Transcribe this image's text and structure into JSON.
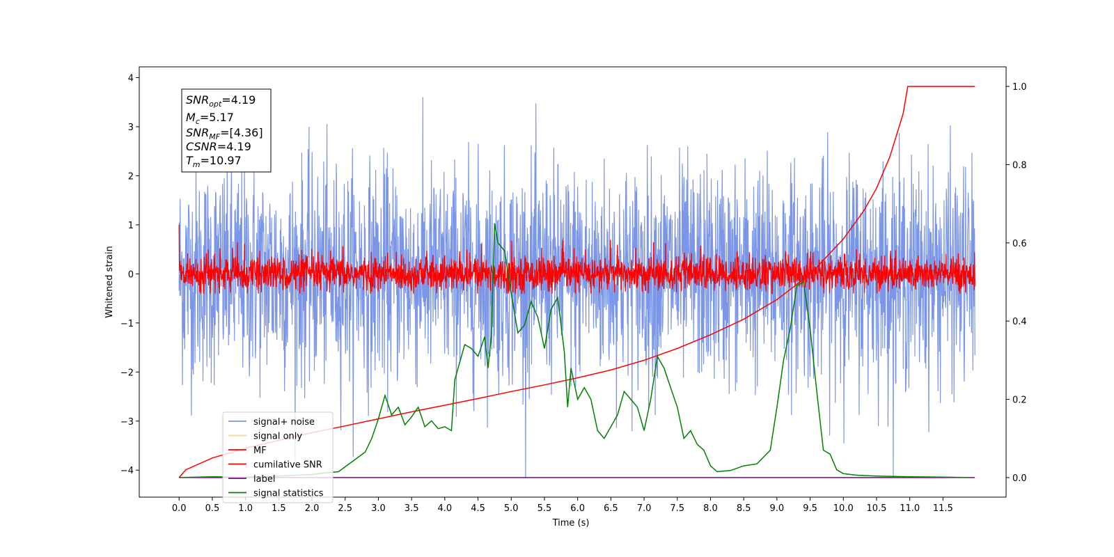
{
  "chart_data": {
    "type": "line",
    "xlabel": "Time (s)",
    "ylabel": "Whitened strain",
    "xlim": [
      -0.6,
      12.45
    ],
    "ylim": [
      -4.55,
      4.22
    ],
    "y2lim": [
      -0.05,
      1.05
    ],
    "x_ticks": [
      "0.0",
      "0.5",
      "1.0",
      "1.5",
      "2.0",
      "2.5",
      "3.0",
      "3.5",
      "4.0",
      "4.5",
      "5.0",
      "5.5",
      "6.0",
      "6.5",
      "7.0",
      "7.5",
      "8.0",
      "8.5",
      "9.0",
      "9.5",
      "10.0",
      "10.5",
      "11.0",
      "11.5"
    ],
    "x_tick_values": [
      0,
      0.5,
      1,
      1.5,
      2,
      2.5,
      3,
      3.5,
      4,
      4.5,
      5,
      5.5,
      6,
      6.5,
      7,
      7.5,
      8,
      8.5,
      9,
      9.5,
      10,
      10.5,
      11,
      11.5
    ],
    "y_tick_values": [
      4,
      3,
      2,
      1,
      0,
      -1,
      -2,
      -3,
      -4
    ],
    "y_ticks": [
      "4",
      "3",
      "2",
      "1",
      "0",
      "−1",
      "−2",
      "−3",
      "−4"
    ],
    "y2_tick_values": [
      1.0,
      0.8,
      0.6,
      0.4,
      0.2,
      0.0
    ],
    "y2_ticks": [
      "1.0",
      "0.8",
      "0.6",
      "0.4",
      "0.2",
      "0.0"
    ],
    "annotation": {
      "snr_opt": {
        "base": "SNR",
        "sub": "opt",
        "value": "=4.19"
      },
      "mc": {
        "base": "M",
        "sub": "c",
        "value": "=5.17"
      },
      "snr_mf": {
        "base": "SNR",
        "sub": "MF",
        "value": "=[4.36]"
      },
      "csnr": {
        "base": "CSNR",
        "sub": "",
        "value": "=4.19"
      },
      "tm": {
        "base": "T",
        "sub": "m",
        "value": "=10.97"
      }
    },
    "legend": {
      "placement": "lower-left",
      "entries": [
        {
          "name": "signal+ noise",
          "color": "#7b96e8"
        },
        {
          "name": "signal only",
          "color": "#ffd27a"
        },
        {
          "name": "MF",
          "color": "#ff0000"
        },
        {
          "name": "cumilative SNR",
          "color": "#ff0000"
        },
        {
          "name": "label",
          "color": "#800080"
        },
        {
          "name": "signal statistics",
          "color": "#008000"
        }
      ]
    },
    "series": [
      {
        "name": "signal+ noise",
        "axis": "left",
        "color": "#7b96e8",
        "x_range": [
          0,
          11.98
        ],
        "amplitude_std": 1.1,
        "y_range": [
          -4.15,
          3.82
        ]
      },
      {
        "name": "signal only",
        "axis": "left",
        "color": "#ffd27a",
        "x_range": [
          0,
          11.98
        ],
        "values": "near zero"
      },
      {
        "name": "MF",
        "axis": "left",
        "color": "#ff0000",
        "x_range": [
          0,
          11.98
        ],
        "amplitude_std": 0.18,
        "y_range": [
          -0.4,
          1.0
        ]
      },
      {
        "name": "cumilative SNR",
        "axis": "right",
        "color": "#ff0000",
        "x": [
          0,
          0.1,
          0.5,
          1,
          1.5,
          2,
          2.5,
          3,
          3.5,
          4,
          4.5,
          5,
          5.5,
          6,
          6.5,
          7,
          7.5,
          8,
          8.5,
          9,
          9.5,
          10,
          10.3,
          10.5,
          10.7,
          10.9,
          10.97,
          11.98
        ],
        "y": [
          0.0,
          0.02,
          0.05,
          0.075,
          0.095,
          0.115,
          0.132,
          0.15,
          0.168,
          0.185,
          0.202,
          0.22,
          0.237,
          0.255,
          0.275,
          0.3,
          0.33,
          0.365,
          0.405,
          0.455,
          0.52,
          0.61,
          0.68,
          0.74,
          0.82,
          0.93,
          1.0,
          1.0
        ]
      },
      {
        "name": "label",
        "axis": "right",
        "color": "#800080",
        "x": [
          0,
          11.98
        ],
        "y": [
          0.0,
          0.0
        ]
      },
      {
        "name": "signal statistics",
        "axis": "right",
        "color": "#008000",
        "x": [
          0,
          0.5,
          1,
          1.5,
          2,
          2.2,
          2.4,
          2.6,
          2.8,
          2.9,
          3.0,
          3.1,
          3.2,
          3.3,
          3.4,
          3.5,
          3.6,
          3.7,
          3.8,
          3.9,
          4.0,
          4.1,
          4.15,
          4.3,
          4.4,
          4.5,
          4.6,
          4.65,
          4.7,
          4.75,
          4.8,
          4.9,
          5.0,
          5.1,
          5.2,
          5.3,
          5.4,
          5.5,
          5.6,
          5.7,
          5.8,
          5.85,
          5.9,
          6.0,
          6.1,
          6.2,
          6.3,
          6.4,
          6.5,
          6.6,
          6.7,
          6.8,
          6.9,
          7.0,
          7.1,
          7.2,
          7.3,
          7.4,
          7.5,
          7.6,
          7.7,
          7.8,
          7.9,
          8.0,
          8.1,
          8.3,
          8.5,
          8.7,
          8.9,
          9.0,
          9.1,
          9.2,
          9.3,
          9.4,
          9.5,
          9.6,
          9.7,
          9.8,
          9.9,
          10.0,
          10.2,
          10.5,
          11.0,
          11.5,
          11.9
        ],
        "y": [
          0.0,
          0.002,
          0.001,
          0.004,
          0.008,
          0.012,
          0.015,
          0.04,
          0.065,
          0.1,
          0.15,
          0.21,
          0.16,
          0.18,
          0.135,
          0.155,
          0.18,
          0.13,
          0.145,
          0.125,
          0.13,
          0.12,
          0.25,
          0.34,
          0.33,
          0.31,
          0.36,
          0.28,
          0.36,
          0.65,
          0.6,
          0.58,
          0.47,
          0.37,
          0.39,
          0.45,
          0.41,
          0.33,
          0.43,
          0.46,
          0.32,
          0.18,
          0.28,
          0.2,
          0.23,
          0.2,
          0.12,
          0.1,
          0.13,
          0.16,
          0.22,
          0.2,
          0.18,
          0.12,
          0.2,
          0.31,
          0.28,
          0.23,
          0.18,
          0.1,
          0.12,
          0.085,
          0.07,
          0.03,
          0.015,
          0.018,
          0.03,
          0.035,
          0.07,
          0.18,
          0.3,
          0.38,
          0.49,
          0.5,
          0.38,
          0.22,
          0.07,
          0.06,
          0.02,
          0.01,
          0.006,
          0.004,
          0.002,
          0.001,
          0.0
        ]
      }
    ],
    "grid": false
  }
}
